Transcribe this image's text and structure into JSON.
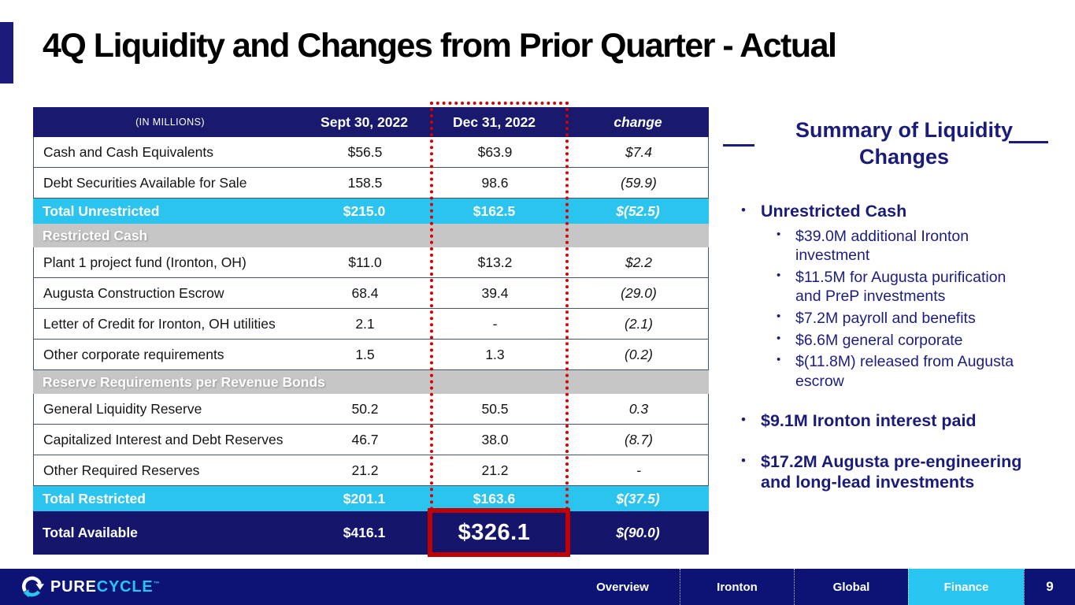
{
  "slide": {
    "title": "4Q Liquidity and Changes from Prior Quarter - Actual"
  },
  "colors": {
    "table_header_navy": "#191A6E",
    "grand_total_navy": "#14156B",
    "footer_navy": "#0C1374",
    "accent_cyan": "#29C4EF",
    "section_gray": "#C6C6C6",
    "highlight_red": "#C00000",
    "sidebar_navy": "#1B1C79"
  },
  "table": {
    "unit_note": "(IN MILLIONS)",
    "columns": [
      "Sept 30, 2022",
      "Dec 31, 2022",
      "change"
    ],
    "rows": [
      {
        "type": "data",
        "label": "Cash and Cash Equivalents",
        "sept": "$56.5",
        "dec": "$63.9",
        "change": "$7.4"
      },
      {
        "type": "data",
        "label": "Debt Securities Available for Sale",
        "sept": "158.5",
        "dec": "98.6",
        "change": "(59.9)"
      },
      {
        "type": "total",
        "label": "Total Unrestricted",
        "sept": "$215.0",
        "dec": "$162.5",
        "change": "$(52.5)"
      },
      {
        "type": "section",
        "label": "Restricted Cash"
      },
      {
        "type": "data",
        "label": "Plant 1 project fund (Ironton, OH)",
        "sept": "$11.0",
        "dec": "$13.2",
        "change": "$2.2"
      },
      {
        "type": "data",
        "label": "Augusta Construction Escrow",
        "sept": "68.4",
        "dec": "39.4",
        "change": "(29.0)"
      },
      {
        "type": "data",
        "label": "Letter of Credit for Ironton, OH utilities",
        "sept": "2.1",
        "dec": "-",
        "change": "(2.1)"
      },
      {
        "type": "data",
        "label": "Other corporate requirements",
        "sept": "1.5",
        "dec": "1.3",
        "change": "(0.2)"
      },
      {
        "type": "section",
        "label": "Reserve Requirements per Revenue Bonds"
      },
      {
        "type": "data",
        "label": "General Liquidity Reserve",
        "sept": "50.2",
        "dec": "50.5",
        "change": "0.3"
      },
      {
        "type": "data",
        "label": "Capitalized Interest and Debt Reserves",
        "sept": "46.7",
        "dec": "38.0",
        "change": "(8.7)"
      },
      {
        "type": "data",
        "label": "Other Required Reserves",
        "sept": "21.2",
        "dec": "21.2",
        "change": "-"
      },
      {
        "type": "total",
        "label": "Total Restricted",
        "sept": "$201.1",
        "dec": "$163.6",
        "change": "$(37.5)"
      },
      {
        "type": "grand",
        "label": "Total Available",
        "sept": "$416.1",
        "dec": "$326.1",
        "change": "$(90.0)"
      }
    ]
  },
  "annotations": {
    "dotted_outline_column": "Dec 31, 2022",
    "solid_box_value": "$326.1"
  },
  "sidebar": {
    "title": "Summary of Liquidity Changes",
    "bullets": [
      {
        "label": "Unrestricted Cash",
        "sub": [
          "$39.0M additional Ironton investment",
          "$11.5M for Augusta purification and PreP investments",
          "$7.2M payroll and benefits",
          "$6.6M general corporate",
          "$(11.8M) released from Augusta escrow"
        ]
      },
      {
        "label": "$9.1M Ironton interest paid"
      },
      {
        "label": "$17.2M Augusta pre-engineering and long-lead investments"
      }
    ]
  },
  "footer": {
    "logo": {
      "part1": "PURE",
      "part2": "CYCLE",
      "tm": "™"
    },
    "tabs": [
      "Overview",
      "Ironton",
      "Global",
      "Finance"
    ],
    "active_tab": "Finance",
    "page": "9"
  }
}
